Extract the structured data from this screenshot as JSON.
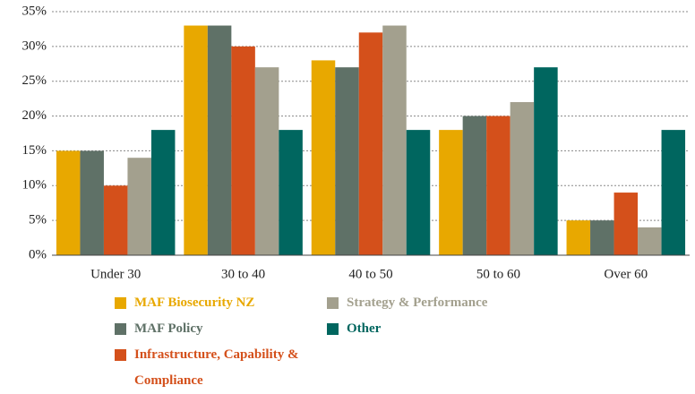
{
  "chart_data": {
    "type": "bar",
    "categories": [
      "Under 30",
      "30 to 40",
      "40 to 50",
      "50 to 60",
      "Over 60"
    ],
    "series": [
      {
        "name": "MAF Biosecurity NZ",
        "color": "#e8a800",
        "values": [
          15,
          33,
          28,
          18,
          5
        ]
      },
      {
        "name": "MAF Policy",
        "color": "#5f7167",
        "values": [
          15,
          33,
          27,
          20,
          5
        ]
      },
      {
        "name": "Infrastructure, Capability & Compliance",
        "color": "#d4501b",
        "values": [
          10,
          30,
          32,
          20,
          9
        ]
      },
      {
        "name": "Strategy & Performance",
        "color": "#a3a08e",
        "values": [
          14,
          27,
          33,
          22,
          4
        ]
      },
      {
        "name": "Other",
        "color": "#00665f",
        "values": [
          18,
          18,
          18,
          27,
          18
        ]
      }
    ],
    "ylim": [
      0,
      35
    ],
    "yticks": [
      {
        "value": 0,
        "label": "0%"
      },
      {
        "value": 5,
        "label": "5%"
      },
      {
        "value": 10,
        "label": "10%"
      },
      {
        "value": 15,
        "label": "15%"
      },
      {
        "value": 20,
        "label": "20%"
      },
      {
        "value": 25,
        "label": "25%"
      },
      {
        "value": 30,
        "label": "30%"
      },
      {
        "value": 35,
        "label": "35%"
      }
    ],
    "grid": true
  }
}
